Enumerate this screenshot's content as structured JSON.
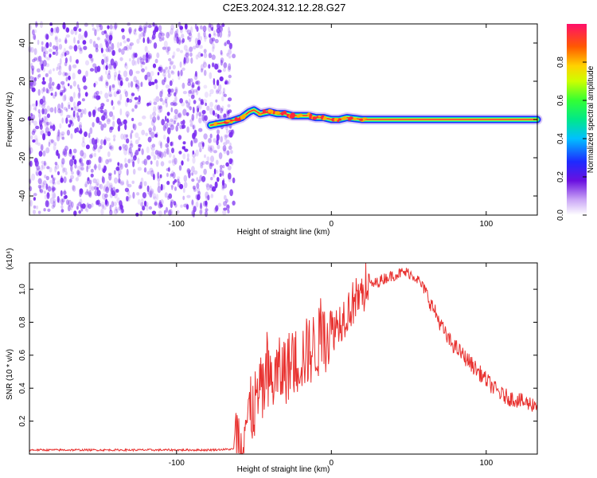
{
  "title": "C2E3.2024.312.12.28.G27",
  "colors": {
    "spectral_noise": "#7a2cf0",
    "snr_line": "#e8312f",
    "frame": "#000000"
  },
  "chart_data": [
    {
      "type": "heatmap",
      "xlabel": "Height of straight line (km)",
      "ylabel": "Frequency (Hz)",
      "xlim": [
        -195,
        133
      ],
      "ylim": [
        -50,
        50
      ],
      "x_ticks": [
        -100,
        0,
        100
      ],
      "x_tick_labels": [
        "-100",
        "0",
        "100"
      ],
      "y_ticks": [
        -40,
        -20,
        0,
        20,
        40
      ],
      "y_tick_labels": [
        "-40",
        "-20",
        "0",
        "20",
        "40"
      ],
      "noise_region_x": [
        -195,
        -63
      ],
      "signal_trace": {
        "x": [
          -78,
          -72,
          -65,
          -58,
          -53,
          -50,
          -46,
          -40,
          -35,
          -30,
          -25,
          -20,
          -15,
          -10,
          -5,
          0,
          5,
          10,
          20,
          40,
          60,
          80,
          100,
          120,
          133
        ],
        "y": [
          -3,
          -2,
          -1,
          1,
          4,
          5,
          3,
          4,
          3,
          3,
          2,
          2,
          2,
          1,
          1,
          0,
          0,
          1,
          0,
          0,
          0,
          0,
          0,
          0,
          0
        ]
      },
      "colorbar": {
        "label": "Normalized spectral amplitude",
        "ticks": [
          0.0,
          0.2,
          0.4,
          0.6,
          0.8
        ],
        "tick_labels": [
          "0.0",
          "0.2",
          "0.4",
          "0.6",
          "0.8"
        ],
        "range": [
          0,
          1
        ]
      }
    },
    {
      "type": "line",
      "xlabel": "Height of straight line (km)",
      "ylabel": "SNR (10 * v/v)",
      "y_multiplier": "(x10⁴)",
      "xlim": [
        -195,
        133
      ],
      "ylim": [
        0,
        1.16
      ],
      "x_ticks": [
        -100,
        0,
        100
      ],
      "x_tick_labels": [
        "-100",
        "0",
        "100"
      ],
      "y_ticks": [
        0.2,
        0.4,
        0.6,
        0.8,
        1.0
      ],
      "y_tick_labels": [
        "0.2",
        "0.4",
        "0.6",
        "0.8",
        "1.0"
      ],
      "series": [
        {
          "x": [
            -195,
            -160,
            -120,
            -80,
            -63,
            -55,
            -45,
            -35,
            -25,
            -15,
            -5,
            5,
            15,
            25,
            35,
            45,
            50,
            55,
            60,
            65,
            70,
            75,
            80,
            85,
            90,
            95,
            100,
            105,
            110,
            115,
            120,
            125,
            133
          ],
          "y": [
            0.025,
            0.025,
            0.025,
            0.025,
            0.03,
            0.2,
            0.38,
            0.48,
            0.55,
            0.62,
            0.7,
            0.8,
            0.93,
            1.02,
            1.07,
            1.1,
            1.1,
            1.07,
            1.0,
            0.9,
            0.8,
            0.7,
            0.65,
            0.6,
            0.55,
            0.5,
            0.45,
            0.4,
            0.36,
            0.34,
            0.33,
            0.31,
            0.3
          ]
        }
      ]
    }
  ]
}
